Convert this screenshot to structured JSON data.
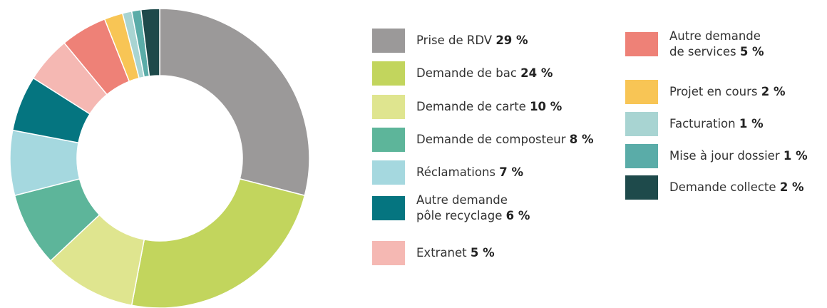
{
  "chart_data": {
    "type": "donut",
    "categories": [
      "Prise de RDV",
      "Demande de bac",
      "Demande de carte",
      "Demande de composteur",
      "Réclamations",
      "Autre demande\npôle recyclage",
      "Extranet",
      "Autre demande\nde services",
      "Projet en cours",
      "Facturation",
      "Mise à jour dossier",
      "Demande collecte"
    ],
    "values": [
      29,
      24,
      10,
      8,
      7,
      6,
      5,
      5,
      2,
      1,
      1,
      2
    ],
    "value_labels": [
      "29 %",
      "24 %",
      "10 %",
      "8 %",
      "7 %",
      "6 %",
      "5 %",
      "5 %",
      "2 %",
      "1 %",
      "1 %",
      "2 %"
    ],
    "colors": [
      "#9b9999",
      "#c2d55d",
      "#dfe58f",
      "#5db59a",
      "#a5d8df",
      "#057580",
      "#f5b8b3",
      "#ee8177",
      "#f8c555",
      "#a8d4d2",
      "#5aaca8",
      "#1e4a4b"
    ],
    "legend": "right"
  }
}
